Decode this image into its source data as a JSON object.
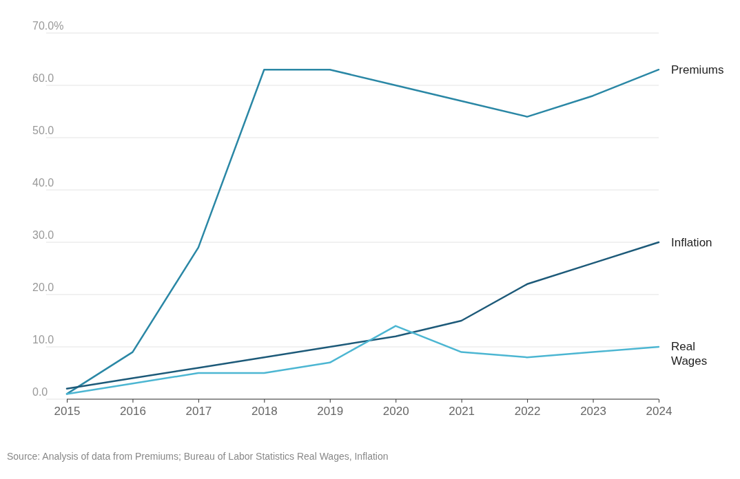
{
  "chart_data": {
    "type": "line",
    "x": [
      2015,
      2016,
      2017,
      2018,
      2019,
      2020,
      2021,
      2022,
      2023,
      2024
    ],
    "xlim": [
      2015,
      2024
    ],
    "xticks": [
      2015,
      2016,
      2017,
      2018,
      2019,
      2020,
      2021,
      2022,
      2023,
      2024
    ],
    "ylim": [
      0,
      70
    ],
    "yticks": [
      {
        "value": 0,
        "label": "0.0"
      },
      {
        "value": 10,
        "label": "10.0"
      },
      {
        "value": 20,
        "label": "20.0"
      },
      {
        "value": 30,
        "label": "30.0"
      },
      {
        "value": 40,
        "label": "40.0"
      },
      {
        "value": 50,
        "label": "50.0"
      },
      {
        "value": 60,
        "label": "60.0"
      },
      {
        "value": 70,
        "label": "70.0%"
      }
    ],
    "grid": "y",
    "legend": false,
    "marker": "none",
    "line_style": "solid",
    "series": [
      {
        "name": "Premiums",
        "color": "#2a87a5",
        "values": [
          1,
          9,
          29,
          63,
          63,
          60,
          57,
          54,
          58,
          63
        ]
      },
      {
        "name": "Inflation",
        "color": "#1d5a79",
        "values": [
          2,
          4,
          6,
          8,
          10,
          12,
          15,
          22,
          26,
          30
        ]
      },
      {
        "name": "Real Wages",
        "color": "#4cb6d2",
        "values": [
          1,
          3,
          5,
          5,
          7,
          14,
          9,
          8,
          9,
          10
        ]
      }
    ],
    "annotations": [
      "Source: Analysis of data from Premiums; Bureau of Labor Statistics Real Wages, Inflation"
    ]
  }
}
